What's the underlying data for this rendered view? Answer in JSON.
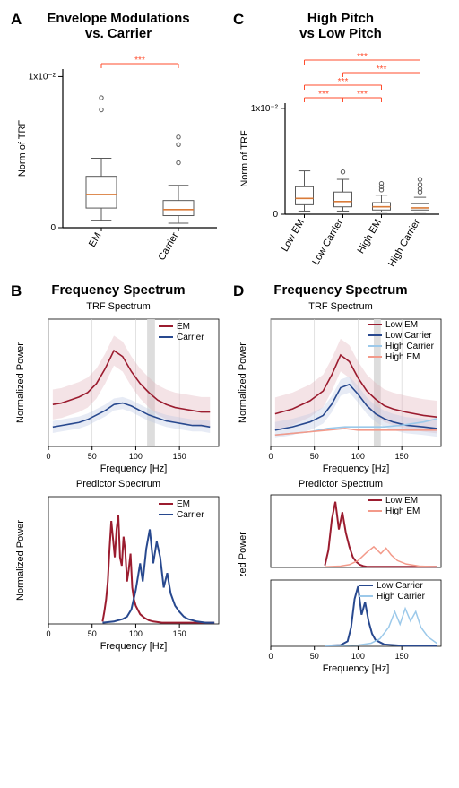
{
  "colors": {
    "em": "#9b1c2f",
    "carrier": "#28498f",
    "low_em": "#9b1c2f",
    "low_carrier": "#28498f",
    "high_em": "#f39a8a",
    "high_carrier": "#9cc9ea",
    "em_fill": "#e0b0b8",
    "carrier_fill": "#b9c6e2",
    "sig_band": "#d9d9d9",
    "sig_red": "#ff4d2e",
    "box_stroke": "#5a5a5a",
    "box_median": "#d97b39",
    "grid": "#cfcfcf"
  },
  "panelA": {
    "letter": "A",
    "title_lines": [
      "Envelope Modulations",
      "vs. Carrier"
    ],
    "y_label": "Norm of TRF",
    "y_tick_label": "1x10⁻²",
    "y_ticks": [
      0,
      0.01
    ],
    "ylim": [
      0,
      0.0105
    ],
    "categories": [
      "EM",
      "Carrier"
    ],
    "boxes": {
      "EM": {
        "q1": 0.0013,
        "med": 0.0022,
        "q3": 0.0034,
        "lw": 0.0005,
        "uw": 0.0046,
        "outliers": [
          0.0078,
          0.0086
        ]
      },
      "Carrier": {
        "q1": 0.0008,
        "med": 0.0012,
        "q3": 0.0018,
        "lw": 0.0003,
        "uw": 0.0028,
        "outliers": [
          0.0055,
          0.006,
          0.0043
        ]
      }
    },
    "sig": [
      {
        "pair": [
          "EM",
          "Carrier"
        ],
        "label": "***"
      }
    ]
  },
  "panelC": {
    "letter": "C",
    "title_lines": [
      "High Pitch",
      "vs Low Pitch"
    ],
    "y_label": "Norm of TRF",
    "y_tick_label": "1x10⁻²",
    "y_ticks": [
      0,
      0.01
    ],
    "ylim": [
      0,
      0.0105
    ],
    "categories": [
      "Low EM",
      "Low Carrier",
      "High EM",
      "High Carrier"
    ],
    "boxes": {
      "Low EM": {
        "q1": 0.0009,
        "med": 0.0015,
        "q3": 0.0026,
        "lw": 0.0003,
        "uw": 0.0041,
        "outliers": []
      },
      "Low Carrier": {
        "q1": 0.0007,
        "med": 0.0012,
        "q3": 0.0021,
        "lw": 0.0003,
        "uw": 0.0033,
        "outliers": [
          0.004
        ]
      },
      "High EM": {
        "q1": 0.0004,
        "med": 0.0007,
        "q3": 0.0011,
        "lw": 0.0002,
        "uw": 0.0018,
        "outliers": [
          0.0023,
          0.0026,
          0.0029
        ]
      },
      "High Carrier": {
        "q1": 0.0004,
        "med": 0.0006,
        "q3": 0.001,
        "lw": 0.0002,
        "uw": 0.0016,
        "outliers": [
          0.0021,
          0.0024,
          0.0028,
          0.0033
        ]
      }
    },
    "sig": [
      {
        "pair": [
          "Low EM",
          "Low Carrier"
        ],
        "label": "***",
        "level": 0
      },
      {
        "pair": [
          "Low Carrier",
          "High EM"
        ],
        "label": "***",
        "level": 0
      },
      {
        "pair": [
          "Low EM",
          "High EM"
        ],
        "label": "***",
        "level": 1
      },
      {
        "pair": [
          "Low Carrier",
          "High Carrier"
        ],
        "label": "***",
        "level": 2
      },
      {
        "pair": [
          "Low EM",
          "High Carrier"
        ],
        "label": "***",
        "level": 3
      }
    ]
  },
  "panelB": {
    "letter": "B",
    "title": "Frequency Spectrum",
    "trf": {
      "sub_title": "TRF Spectrum",
      "x_label": "Frequency [Hz]",
      "y_label": "Normalized Power",
      "xlim": [
        0,
        195
      ],
      "x_ticks": [
        0,
        50,
        100,
        150
      ],
      "sig_band": [
        113,
        122
      ],
      "series": [
        {
          "name": "EM",
          "color_key": "em",
          "fill_key": "em_fill",
          "x": [
            5,
            15,
            25,
            35,
            45,
            55,
            65,
            75,
            85,
            95,
            105,
            115,
            125,
            135,
            145,
            155,
            165,
            175,
            185
          ],
          "y": [
            0.28,
            0.29,
            0.31,
            0.33,
            0.36,
            0.42,
            0.52,
            0.64,
            0.6,
            0.5,
            0.42,
            0.36,
            0.31,
            0.28,
            0.26,
            0.25,
            0.24,
            0.23,
            0.23
          ],
          "err": 0.1
        },
        {
          "name": "Carrier",
          "color_key": "carrier",
          "fill_key": "carrier_fill",
          "x": [
            5,
            15,
            25,
            35,
            45,
            55,
            65,
            75,
            85,
            95,
            105,
            115,
            125,
            135,
            145,
            155,
            165,
            175,
            185
          ],
          "y": [
            0.13,
            0.14,
            0.15,
            0.16,
            0.18,
            0.21,
            0.24,
            0.28,
            0.29,
            0.27,
            0.24,
            0.21,
            0.19,
            0.17,
            0.16,
            0.15,
            0.14,
            0.14,
            0.13
          ],
          "err": 0.04
        }
      ],
      "legend": [
        {
          "label": "EM",
          "color_key": "em"
        },
        {
          "label": "Carrier",
          "color_key": "carrier"
        }
      ]
    },
    "pred": {
      "sub_title": "Predictor Spectrum",
      "x_label": "Frequency [Hz]",
      "y_label": "Normalized Power",
      "xlim": [
        0,
        195
      ],
      "x_ticks": [
        0,
        50,
        100,
        150
      ],
      "series": [
        {
          "name": "EM",
          "color_key": "em",
          "lw": 2,
          "x": [
            62,
            64,
            66,
            68,
            70,
            72,
            74,
            76,
            78,
            80,
            82,
            84,
            86,
            88,
            90,
            92,
            94,
            96,
            98,
            100,
            105,
            110,
            115,
            120,
            130,
            140,
            150,
            160,
            170,
            180,
            190
          ],
          "y": [
            0.02,
            0.1,
            0.2,
            0.35,
            0.62,
            0.85,
            0.7,
            0.55,
            0.78,
            0.9,
            0.55,
            0.48,
            0.72,
            0.6,
            0.35,
            0.45,
            0.58,
            0.3,
            0.2,
            0.15,
            0.08,
            0.05,
            0.03,
            0.02,
            0.01,
            0.01,
            0.01,
            0.01,
            0.01,
            0.01,
            0.01
          ]
        },
        {
          "name": "Carrier",
          "color_key": "carrier",
          "lw": 2,
          "x": [
            62,
            75,
            80,
            85,
            90,
            95,
            100,
            105,
            108,
            112,
            116,
            120,
            124,
            128,
            132,
            136,
            140,
            145,
            150,
            155,
            160,
            170,
            180,
            190
          ],
          "y": [
            0.01,
            0.02,
            0.03,
            0.04,
            0.06,
            0.12,
            0.28,
            0.5,
            0.35,
            0.62,
            0.78,
            0.5,
            0.68,
            0.55,
            0.3,
            0.42,
            0.25,
            0.15,
            0.1,
            0.06,
            0.04,
            0.02,
            0.01,
            0.01
          ]
        }
      ],
      "legend": [
        {
          "label": "EM",
          "color_key": "em"
        },
        {
          "label": "Carrier",
          "color_key": "carrier"
        }
      ]
    }
  },
  "panelD": {
    "letter": "D",
    "title": "Frequency Spectrum",
    "trf": {
      "sub_title": "TRF Spectrum",
      "x_label": "Frequency [Hz]",
      "y_label": "Normalized Power",
      "xlim": [
        0,
        195
      ],
      "x_ticks": [
        0,
        50,
        100,
        150
      ],
      "sig_band": [
        118,
        126
      ],
      "series": [
        {
          "name": "Low EM",
          "color_key": "low_em",
          "fill_key": "em_fill",
          "x": [
            5,
            25,
            45,
            60,
            70,
            80,
            90,
            100,
            110,
            120,
            130,
            140,
            155,
            175,
            190
          ],
          "y": [
            0.2,
            0.23,
            0.28,
            0.34,
            0.44,
            0.56,
            0.52,
            0.42,
            0.34,
            0.29,
            0.25,
            0.23,
            0.21,
            0.19,
            0.18
          ],
          "err": 0.1
        },
        {
          "name": "Low Carrier",
          "color_key": "low_carrier",
          "fill_key": "carrier_fill",
          "x": [
            5,
            25,
            45,
            60,
            70,
            80,
            90,
            100,
            110,
            120,
            130,
            140,
            155,
            175,
            190
          ],
          "y": [
            0.1,
            0.12,
            0.15,
            0.19,
            0.26,
            0.36,
            0.38,
            0.32,
            0.25,
            0.2,
            0.17,
            0.15,
            0.13,
            0.12,
            0.11
          ],
          "err": 0.05
        },
        {
          "name": "High Carrier",
          "color_key": "high_carrier",
          "x": [
            5,
            25,
            45,
            65,
            85,
            100,
            115,
            130,
            150,
            175,
            190
          ],
          "y": [
            0.07,
            0.08,
            0.09,
            0.11,
            0.12,
            0.12,
            0.12,
            0.12,
            0.13,
            0.15,
            0.17
          ],
          "err": 0
        },
        {
          "name": "High EM",
          "color_key": "high_em",
          "x": [
            5,
            25,
            45,
            65,
            85,
            100,
            115,
            130,
            150,
            175,
            190
          ],
          "y": [
            0.07,
            0.08,
            0.09,
            0.1,
            0.11,
            0.1,
            0.1,
            0.1,
            0.1,
            0.1,
            0.1
          ],
          "err": 0
        }
      ],
      "legend": [
        {
          "label": "Low EM",
          "color_key": "low_em"
        },
        {
          "label": "Low Carrier",
          "color_key": "low_carrier"
        },
        {
          "label": "High Carrier",
          "color_key": "high_carrier"
        },
        {
          "label": "High EM",
          "color_key": "high_em"
        }
      ]
    },
    "pred_top": {
      "sub_title": "Predictor Spectrum",
      "series": [
        {
          "name": "Low EM",
          "color_key": "low_em",
          "lw": 2,
          "x": [
            62,
            66,
            70,
            74,
            78,
            82,
            86,
            90,
            94,
            98,
            102,
            106,
            110,
            120,
            140,
            170,
            190
          ],
          "y": [
            0.03,
            0.25,
            0.7,
            0.95,
            0.55,
            0.8,
            0.5,
            0.3,
            0.15,
            0.08,
            0.04,
            0.02,
            0.01,
            0.01,
            0.01,
            0.01,
            0.01
          ]
        },
        {
          "name": "High EM",
          "color_key": "high_em",
          "lw": 1.5,
          "x": [
            62,
            80,
            90,
            100,
            110,
            118,
            126,
            132,
            138,
            145,
            155,
            170,
            190
          ],
          "y": [
            0.01,
            0.02,
            0.04,
            0.1,
            0.22,
            0.3,
            0.2,
            0.28,
            0.18,
            0.1,
            0.05,
            0.02,
            0.01
          ]
        }
      ],
      "legend": [
        {
          "label": "Low EM",
          "color_key": "low_em"
        },
        {
          "label": "High EM",
          "color_key": "high_em"
        }
      ]
    },
    "pred_bot": {
      "x_label": "Frequency [Hz]",
      "xlim": [
        0,
        195
      ],
      "x_ticks": [
        0,
        50,
        100,
        150
      ],
      "series": [
        {
          "name": "Low Carrier",
          "color_key": "low_carrier",
          "lw": 2,
          "x": [
            62,
            80,
            88,
            92,
            96,
            100,
            104,
            108,
            112,
            116,
            120,
            130,
            150,
            170,
            190
          ],
          "y": [
            0.01,
            0.02,
            0.08,
            0.3,
            0.75,
            0.95,
            0.5,
            0.7,
            0.4,
            0.2,
            0.1,
            0.03,
            0.01,
            0.01,
            0.01
          ]
        },
        {
          "name": "High Carrier",
          "color_key": "high_carrier",
          "lw": 1.5,
          "x": [
            62,
            100,
            115,
            125,
            135,
            142,
            148,
            154,
            160,
            166,
            172,
            180,
            190
          ],
          "y": [
            0.01,
            0.02,
            0.05,
            0.12,
            0.3,
            0.55,
            0.35,
            0.6,
            0.4,
            0.55,
            0.3,
            0.15,
            0.05
          ]
        }
      ],
      "legend": [
        {
          "label": "Low Carrier",
          "color_key": "low_carrier"
        },
        {
          "label": "High Carrier",
          "color_key": "high_carrier"
        }
      ]
    }
  },
  "fonts": {
    "title_pt": 15,
    "letter_pt": 17,
    "axis_pt": 11,
    "tick_pt": 10,
    "legend_pt": 10
  }
}
